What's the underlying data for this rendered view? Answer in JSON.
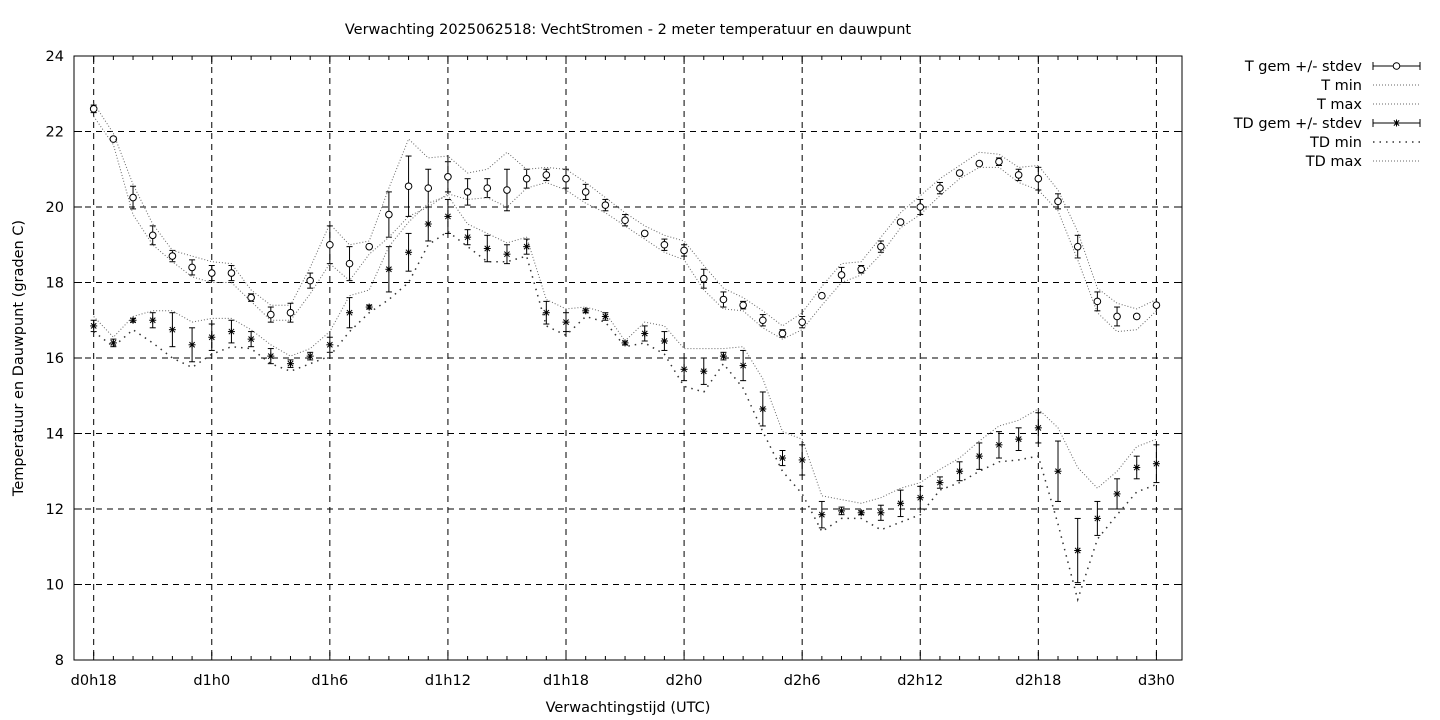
{
  "chart_data": {
    "type": "line",
    "title": "Verwachting 2025062518: VechtStromen - 2 meter temperatuur en dauwpunt",
    "xlabel": "Verwachtingstijd (UTC)",
    "ylabel": "Temperatuur en Dauwpunt (graden C)",
    "x_hours": [
      18,
      19,
      20,
      21,
      22,
      23,
      24,
      25,
      26,
      27,
      28,
      29,
      30,
      31,
      32,
      33,
      34,
      35,
      36,
      37,
      38,
      39,
      40,
      41,
      42,
      43,
      44,
      45,
      46,
      47,
      48,
      49,
      50,
      51,
      52,
      53,
      54,
      55,
      56,
      57,
      58,
      59,
      60,
      61,
      62,
      63,
      64,
      65,
      66,
      67,
      68,
      69,
      70,
      71,
      72
    ],
    "xlim": [
      17,
      73.3
    ],
    "ylim": [
      8,
      24
    ],
    "x_ticks": [
      {
        "x": 18,
        "label": "d0h18"
      },
      {
        "x": 24,
        "label": "d1h0"
      },
      {
        "x": 30,
        "label": "d1h6"
      },
      {
        "x": 36,
        "label": "d1h12"
      },
      {
        "x": 42,
        "label": "d1h18"
      },
      {
        "x": 48,
        "label": "d2h0"
      },
      {
        "x": 54,
        "label": "d2h6"
      },
      {
        "x": 60,
        "label": "d2h12"
      },
      {
        "x": 66,
        "label": "d2h18"
      },
      {
        "x": 72,
        "label": "d3h0"
      }
    ],
    "y_ticks": [
      8,
      10,
      12,
      14,
      16,
      18,
      20,
      22,
      24
    ],
    "grid": true,
    "legend_position": "outside-top-right",
    "series": [
      {
        "name": "T gem +/- stdev",
        "kind": "errorbar",
        "marker": "circle",
        "values": [
          22.6,
          21.8,
          20.25,
          19.25,
          18.7,
          18.4,
          18.25,
          18.25,
          17.6,
          17.15,
          17.2,
          18.05,
          19.0,
          18.5,
          18.95,
          19.8,
          20.55,
          20.5,
          20.8,
          20.4,
          20.5,
          20.45,
          20.75,
          20.85,
          20.75,
          20.4,
          20.05,
          19.65,
          19.3,
          19.0,
          18.85,
          18.1,
          17.55,
          17.4,
          17.0,
          16.65,
          16.95,
          17.65,
          18.2,
          18.35,
          18.95,
          19.6,
          20.0,
          20.5,
          20.9,
          21.15,
          21.2,
          20.85,
          20.75,
          20.15,
          18.95,
          17.5,
          17.1,
          17.1,
          17.4
        ],
        "stdev": [
          0.1,
          0.05,
          0.3,
          0.25,
          0.15,
          0.2,
          0.2,
          0.2,
          0.1,
          0.2,
          0.25,
          0.2,
          0.5,
          0.45,
          0.05,
          0.6,
          0.8,
          0.5,
          0.4,
          0.35,
          0.25,
          0.55,
          0.25,
          0.15,
          0.25,
          0.2,
          0.15,
          0.15,
          0.05,
          0.15,
          0.15,
          0.25,
          0.2,
          0.1,
          0.15,
          0.1,
          0.15,
          0.05,
          0.2,
          0.1,
          0.15,
          0.05,
          0.2,
          0.15,
          0.05,
          0.05,
          0.1,
          0.15,
          0.3,
          0.2,
          0.3,
          0.25,
          0.25,
          0.05,
          0.05
        ]
      },
      {
        "name": "T min",
        "kind": "line",
        "style": "dotted",
        "values": [
          22.4,
          21.65,
          19.8,
          19.0,
          18.55,
          18.15,
          18.0,
          18.0,
          17.5,
          17.0,
          17.0,
          17.7,
          18.5,
          18.05,
          18.75,
          19.2,
          19.75,
          20.0,
          20.35,
          20.2,
          20.25,
          20.0,
          20.5,
          20.65,
          20.45,
          20.1,
          19.85,
          19.5,
          19.15,
          18.8,
          18.6,
          17.8,
          17.3,
          17.25,
          16.8,
          16.5,
          16.75,
          17.4,
          18.0,
          18.2,
          18.75,
          19.45,
          19.8,
          20.3,
          20.75,
          21.05,
          21.05,
          20.65,
          20.45,
          19.9,
          18.6,
          17.2,
          16.7,
          16.75,
          17.25
        ]
      },
      {
        "name": "T max",
        "kind": "line",
        "style": "dotted",
        "values": [
          22.75,
          21.95,
          20.6,
          19.55,
          18.85,
          18.7,
          18.55,
          18.5,
          17.8,
          17.4,
          17.4,
          18.4,
          19.55,
          19.0,
          19.1,
          20.5,
          21.8,
          21.3,
          21.35,
          20.9,
          21.0,
          21.45,
          21.0,
          21.05,
          21.0,
          20.65,
          20.25,
          19.85,
          19.5,
          19.25,
          19.1,
          18.45,
          17.85,
          17.6,
          17.25,
          16.85,
          17.2,
          17.9,
          18.5,
          18.55,
          19.2,
          19.85,
          20.3,
          20.75,
          21.1,
          21.45,
          21.4,
          21.05,
          21.1,
          20.45,
          19.35,
          17.85,
          17.45,
          17.3,
          17.55
        ]
      },
      {
        "name": "TD gem +/- stdev",
        "kind": "errorbar",
        "marker": "star",
        "values": [
          16.85,
          16.4,
          17.0,
          17.0,
          16.75,
          16.35,
          16.55,
          16.7,
          16.5,
          16.05,
          15.85,
          16.05,
          16.35,
          17.2,
          17.35,
          18.35,
          18.8,
          19.55,
          19.75,
          19.2,
          18.9,
          18.75,
          18.95,
          17.2,
          16.95,
          17.25,
          17.1,
          16.4,
          16.65,
          16.45,
          15.7,
          15.65,
          16.05,
          15.8,
          14.65,
          13.35,
          13.3,
          11.85,
          11.95,
          11.9,
          11.9,
          12.15,
          12.3,
          12.7,
          13.0,
          13.4,
          13.7,
          13.85,
          14.15,
          13.0,
          10.9,
          11.75,
          12.4,
          13.1,
          13.2
        ],
        "stdev": [
          0.15,
          0.1,
          0.05,
          0.2,
          0.45,
          0.45,
          0.35,
          0.3,
          0.2,
          0.2,
          0.1,
          0.1,
          0.2,
          0.4,
          0.05,
          0.6,
          0.5,
          0.45,
          0.45,
          0.2,
          0.35,
          0.25,
          0.2,
          0.3,
          0.25,
          0.05,
          0.1,
          0.05,
          0.2,
          0.25,
          0.3,
          0.35,
          0.1,
          0.4,
          0.45,
          0.2,
          0.4,
          0.35,
          0.1,
          0.05,
          0.2,
          0.35,
          0.3,
          0.15,
          0.25,
          0.35,
          0.35,
          0.3,
          0.4,
          0.8,
          0.85,
          0.45,
          0.4,
          0.3,
          0.5
        ]
      },
      {
        "name": "TD min",
        "kind": "line",
        "style": "sparse-dotted",
        "values": [
          16.7,
          16.3,
          16.75,
          16.4,
          16.0,
          15.75,
          16.1,
          16.3,
          16.25,
          15.85,
          15.65,
          15.85,
          16.05,
          16.7,
          17.2,
          17.55,
          18.0,
          19.0,
          19.35,
          18.95,
          18.55,
          18.55,
          18.7,
          16.85,
          16.6,
          17.1,
          16.95,
          16.3,
          16.4,
          16.1,
          15.25,
          15.1,
          15.85,
          15.2,
          14.05,
          13.0,
          12.4,
          11.4,
          11.75,
          11.75,
          11.45,
          11.65,
          11.85,
          12.5,
          12.7,
          13.0,
          13.25,
          13.3,
          13.4,
          11.6,
          9.6,
          11.2,
          11.85,
          12.45,
          12.65
        ]
      },
      {
        "name": "TD max",
        "kind": "line",
        "style": "dotted",
        "values": [
          17.1,
          16.55,
          17.1,
          17.25,
          17.25,
          16.95,
          17.05,
          17.05,
          16.75,
          16.35,
          16.05,
          16.25,
          16.7,
          17.65,
          17.8,
          18.95,
          19.6,
          20.1,
          20.3,
          19.55,
          19.3,
          19.05,
          19.2,
          17.55,
          17.3,
          17.35,
          17.2,
          16.45,
          16.95,
          16.85,
          16.25,
          16.25,
          16.25,
          16.3,
          15.45,
          14.05,
          13.85,
          12.35,
          12.25,
          12.15,
          12.3,
          12.55,
          12.7,
          13.05,
          13.35,
          13.8,
          14.2,
          14.35,
          14.65,
          14.15,
          13.1,
          12.55,
          13.0,
          13.65,
          13.85
        ]
      }
    ]
  }
}
